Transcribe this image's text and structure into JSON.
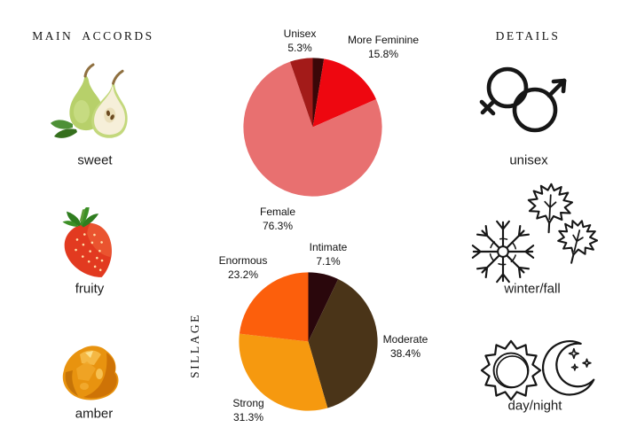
{
  "sections": {
    "main_accords_title": "MAIN ACCORDS",
    "details_title": "DETAILS"
  },
  "accords": [
    {
      "label": "sweet",
      "icon": "pear-image"
    },
    {
      "label": "fruity",
      "icon": "strawberry-image"
    },
    {
      "label": "amber",
      "icon": "amber-resin-image"
    }
  ],
  "details_items": [
    {
      "label": "unisex",
      "icon": "gender-unisex-icon"
    },
    {
      "label": "winter/fall",
      "icon": "snowflake-and-maple-leaves-icon"
    },
    {
      "label": "day/night",
      "icon": "sun-and-moon-icon"
    }
  ],
  "chart_data": [
    {
      "type": "pie",
      "name": "gender-votes",
      "title": "",
      "direction": "clockwise",
      "start_angle": "12-oclock",
      "legend_position": "none",
      "slices": [
        {
          "label": "",
          "pct": "",
          "value": 2.6,
          "color": "#3b0708"
        },
        {
          "label": "More Feminine",
          "pct": "15.8%",
          "value": 15.8,
          "color": "#ee0710"
        },
        {
          "label": "Female",
          "pct": "76.3%",
          "value": 76.3,
          "color": "#e87070"
        },
        {
          "label": "Unisex",
          "pct": "5.3%",
          "value": 5.3,
          "color": "#a31b19"
        }
      ]
    },
    {
      "type": "pie",
      "name": "sillage",
      "title": "SILLAGE",
      "direction": "clockwise",
      "start_angle": "12-oclock",
      "legend_position": "none",
      "slices": [
        {
          "label": "Intimate",
          "pct": "7.1%",
          "value": 7.1,
          "color": "#2a070c"
        },
        {
          "label": "Moderate",
          "pct": "38.4%",
          "value": 38.4,
          "color": "#4a3418"
        },
        {
          "label": "Strong",
          "pct": "31.3%",
          "value": 31.3,
          "color": "#f6990f"
        },
        {
          "label": "Enormous",
          "pct": "23.2%",
          "value": 23.2,
          "color": "#fc5f0c"
        }
      ]
    }
  ]
}
